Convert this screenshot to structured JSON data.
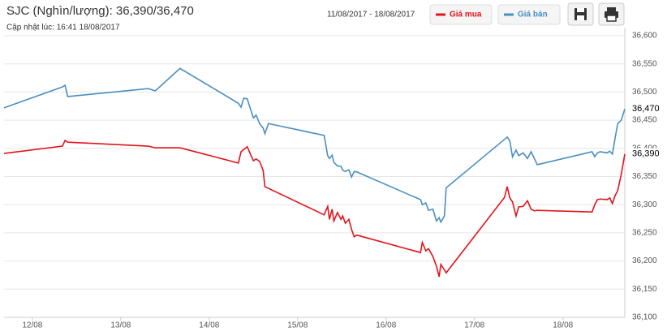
{
  "chart_data": {
    "type": "line",
    "title": "SJC (Nghìn/lượng): 36,390/36,470",
    "subtitle": "Cập nhật lúc: 16:41 18/08/2017",
    "date_range": "11/08/2017 - 18/08/2017",
    "x": [
      11.68,
      12.34,
      12.37,
      12.4,
      13.31,
      13.39,
      13.67,
      14.33,
      14.36,
      14.39,
      14.43,
      14.46,
      14.5,
      14.53,
      14.57,
      14.61,
      14.63,
      14.67,
      15.3,
      15.34,
      15.36,
      15.39,
      15.41,
      15.45,
      15.49,
      15.51,
      15.54,
      15.58,
      15.61,
      15.64,
      15.67,
      16.39,
      16.41,
      16.45,
      16.48,
      16.53,
      16.57,
      16.6,
      16.62,
      16.66,
      16.68,
      17.34,
      17.37,
      17.4,
      17.43,
      17.47,
      17.5,
      17.55,
      17.6,
      17.64,
      17.68,
      17.71,
      18.33,
      18.36,
      18.39,
      18.42,
      18.5,
      18.53,
      18.56,
      18.59,
      18.62,
      18.66,
      18.7
    ],
    "series": [
      {
        "name": "Giá mua",
        "color": "#e3131b",
        "last_label": "36,390",
        "values": [
          36391,
          36404,
          36414,
          36411,
          36404,
          36401,
          36401,
          36374,
          36394,
          36398,
          36403,
          36392,
          36378,
          36381,
          36377,
          36361,
          36332,
          36329,
          36282,
          36297,
          36274,
          36292,
          36271,
          36286,
          36274,
          36280,
          36267,
          36274,
          36256,
          36243,
          36246,
          36215,
          36233,
          36218,
          36222,
          36208,
          36191,
          36172,
          36194,
          36184,
          36179,
          36313,
          36332,
          36312,
          36305,
          36280,
          36296,
          36297,
          36307,
          36292,
          36289,
          36290,
          36287,
          36300,
          36309,
          36310,
          36309,
          36312,
          36302,
          36316,
          36325,
          36354,
          36390
        ]
      },
      {
        "name": "Giá bán",
        "color": "#4a8fc1",
        "last_label": "36,470",
        "values": [
          36472,
          36509,
          36512,
          36492,
          36506,
          36502,
          36542,
          36480,
          36473,
          36489,
          36488,
          36473,
          36454,
          36459,
          36444,
          36436,
          36426,
          36444,
          36423,
          36387,
          36382,
          36388,
          36375,
          36369,
          36368,
          36361,
          36359,
          36362,
          36349,
          36359,
          36358,
          36309,
          36300,
          36303,
          36290,
          36292,
          36271,
          36277,
          36269,
          36280,
          36330,
          36416,
          36420,
          36413,
          36385,
          36397,
          36387,
          36392,
          36382,
          36394,
          36381,
          36371,
          36394,
          36385,
          36392,
          36394,
          36392,
          36395,
          36390,
          36418,
          36444,
          36450,
          36470
        ]
      }
    ],
    "xlim": [
      11.68,
      18.7
    ],
    "xticks": [
      {
        "value": 12,
        "label": "12/08"
      },
      {
        "value": 13,
        "label": "13/08"
      },
      {
        "value": 14,
        "label": "14/08"
      },
      {
        "value": 15,
        "label": "15/08"
      },
      {
        "value": 16,
        "label": "16/08"
      },
      {
        "value": 17,
        "label": "17/08"
      },
      {
        "value": 18,
        "label": "18/08"
      }
    ],
    "ylim": [
      36100,
      36600
    ],
    "yticks": [
      {
        "value": 36100,
        "label": "36,100"
      },
      {
        "value": 36150,
        "label": "36,150"
      },
      {
        "value": 36200,
        "label": "36,200"
      },
      {
        "value": 36250,
        "label": "36,250"
      },
      {
        "value": 36300,
        "label": "36,300"
      },
      {
        "value": 36350,
        "label": "36,350"
      },
      {
        "value": 36400,
        "label": "36,400"
      },
      {
        "value": 36450,
        "label": "36,450"
      },
      {
        "value": 36500,
        "label": "36,500"
      },
      {
        "value": 36550,
        "label": "36,550"
      },
      {
        "value": 36600,
        "label": "36,600"
      }
    ],
    "grid": true
  }
}
